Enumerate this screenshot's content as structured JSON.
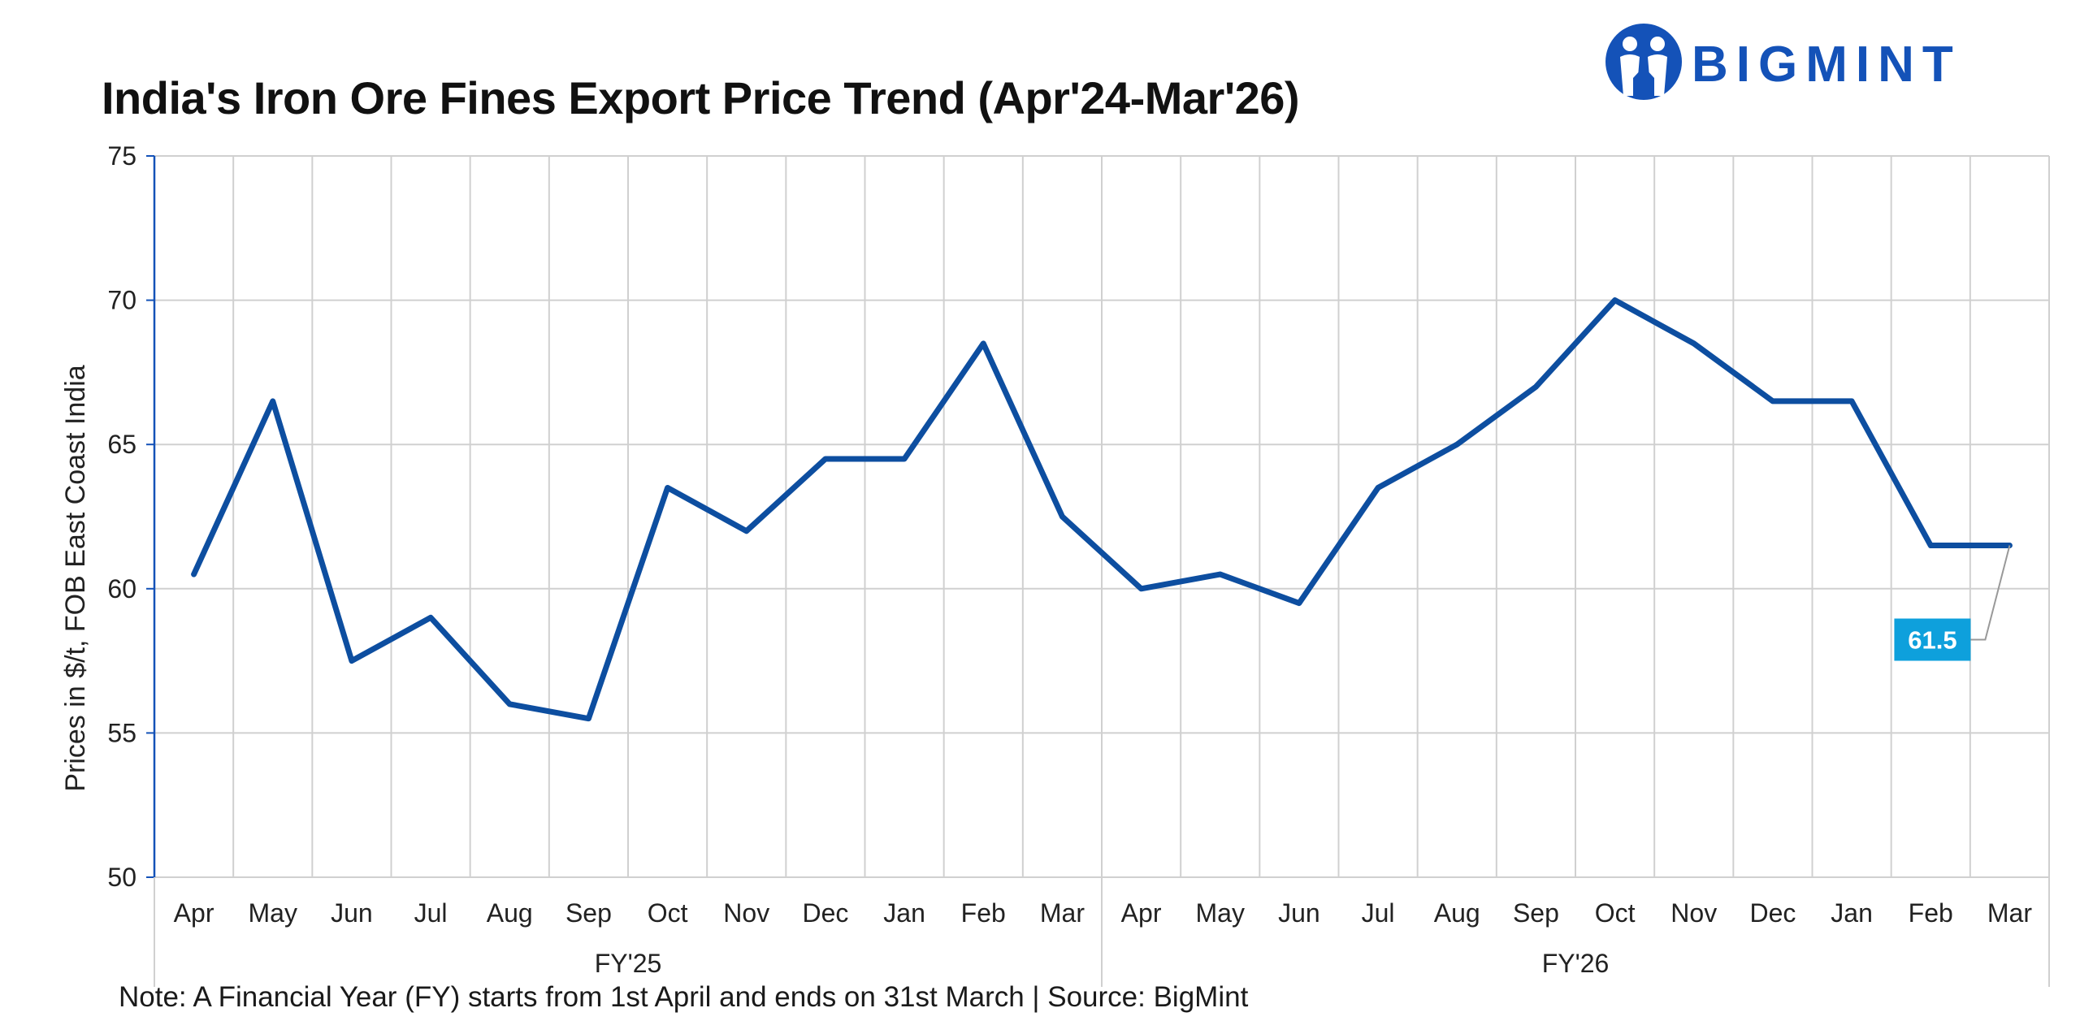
{
  "header": {
    "title": "India's Iron Ore Fines Export Price Trend (Apr'24-Mar'26)",
    "brand": "BIGMINT"
  },
  "footer": {
    "note": "Note: A Financial Year (FY) starts from 1st April and ends on 31st March | Source: BigMint"
  },
  "colors": {
    "line": "#0d4ea0",
    "label_bg": "#0ea0dc",
    "grid": "#d0d0d0",
    "axis": "#1452b8",
    "brand": "#1452b8"
  },
  "chart_data": {
    "type": "line",
    "title": "India's Iron Ore Fines Export Price Trend (Apr'24-Mar'26)",
    "xlabel": "",
    "ylabel": "Prices in $/t, FOB East Coast India",
    "ylim": [
      50,
      75
    ],
    "yticks": [
      50,
      55,
      60,
      65,
      70,
      75
    ],
    "grid": true,
    "categories": [
      "Apr",
      "May",
      "Jun",
      "Jul",
      "Aug",
      "Sep",
      "Oct",
      "Nov",
      "Dec",
      "Jan",
      "Feb",
      "Mar",
      "Apr",
      "May",
      "Jun",
      "Jul",
      "Aug",
      "Sep",
      "Oct",
      "Nov",
      "Dec",
      "Jan",
      "Feb",
      "Mar"
    ],
    "groups": [
      {
        "label": "FY'25",
        "count": 12
      },
      {
        "label": "FY'26",
        "count": 12
      }
    ],
    "series": [
      {
        "values": [
          60.5,
          66.5,
          57.5,
          59,
          56,
          55.5,
          63.5,
          62,
          64.5,
          64.5,
          68.5,
          62.5,
          60,
          60.5,
          59.5,
          63.5,
          65,
          67,
          70,
          68.5,
          66.5,
          66.5,
          61.5,
          61.5
        ]
      }
    ],
    "annotations": [
      {
        "index": 23,
        "text": "61.5"
      }
    ]
  }
}
